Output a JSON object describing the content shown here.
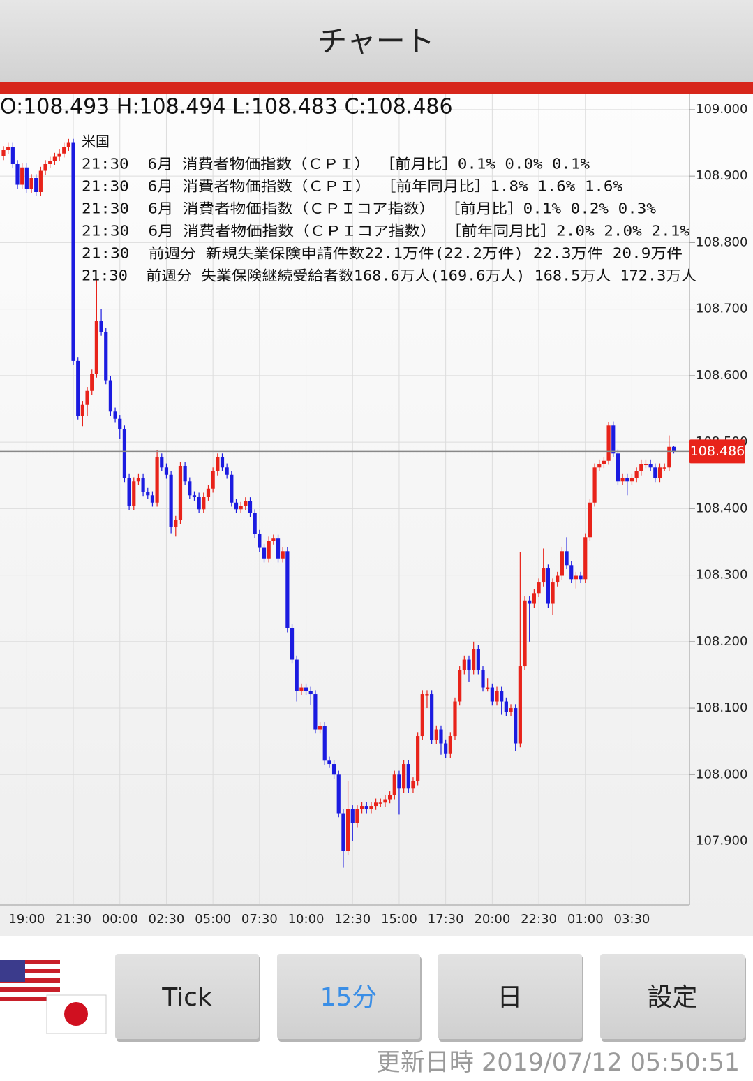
{
  "header": {
    "title": "チャート"
  },
  "chart_data": {
    "type": "candlestick",
    "ohlc_label": "O:108.493 H:108.494 L:108.483 C:108.486",
    "annotations": {
      "country": "米国",
      "lines": [
        "21:30  6月 消費者物価指数（ＣＰＩ） ［前月比］0.1% 0.0% 0.1%",
        "21:30  6月 消費者物価指数（ＣＰＩ） ［前年同月比］1.8% 1.6% 1.6%",
        "21:30  6月 消費者物価指数（ＣＰＩコア指数） ［前月比］0.1% 0.2% 0.3%",
        "21:30  6月 消費者物価指数（ＣＰＩコア指数） ［前年同月比］2.0% 2.0% 2.1%",
        "21:30  前週分 新規失業保険申請件数22.1万件(22.2万件) 22.3万件 20.9万件",
        "21:30  前週分 失業保険継続受給者数168.6万人(169.6万人) 168.5万人 172.3万人"
      ]
    },
    "categories": [
      null,
      null,
      null,
      null,
      null,
      "19:00",
      null,
      null,
      null,
      null,
      null,
      null,
      null,
      null,
      null,
      "21:30",
      null,
      null,
      null,
      null,
      null,
      null,
      null,
      null,
      null,
      "00:00",
      null,
      null,
      null,
      null,
      null,
      null,
      null,
      null,
      null,
      "02:30",
      null,
      null,
      null,
      null,
      null,
      null,
      null,
      null,
      null,
      "05:00",
      null,
      null,
      null,
      null,
      null,
      null,
      null,
      null,
      null,
      "07:30",
      null,
      null,
      null,
      null,
      null,
      null,
      null,
      null,
      null,
      "10:00",
      null,
      null,
      null,
      null,
      null,
      null,
      null,
      null,
      null,
      "12:30",
      null,
      null,
      null,
      null,
      null,
      null,
      null,
      null,
      null,
      "15:00",
      null,
      null,
      null,
      null,
      null,
      null,
      null,
      null,
      null,
      "17:30",
      null,
      null,
      null,
      null,
      null,
      null,
      null,
      null,
      null,
      "20:00",
      null,
      null,
      null,
      null,
      null,
      null,
      null,
      null,
      null,
      "22:30",
      null,
      null,
      null,
      null,
      null,
      null,
      null,
      null,
      null,
      "01:00",
      null,
      null,
      null,
      null,
      null,
      null,
      null,
      null,
      null,
      "03:30",
      null,
      null,
      null,
      null,
      null,
      null,
      null,
      null,
      null
    ],
    "open": [
      108.93,
      108.939,
      108.944,
      108.918,
      108.887,
      108.913,
      108.881,
      108.897,
      108.876,
      108.908,
      108.918,
      108.923,
      108.929,
      108.934,
      108.944,
      108.95,
      108.622,
      108.54,
      108.556,
      108.577,
      108.603,
      108.682,
      108.666,
      108.593,
      108.546,
      108.535,
      108.519,
      108.446,
      108.404,
      108.441,
      108.446,
      108.425,
      108.42,
      108.409,
      108.477,
      108.462,
      108.451,
      108.373,
      108.383,
      108.464,
      108.441,
      108.42,
      108.418,
      108.399,
      108.418,
      108.43,
      108.456,
      108.477,
      108.462,
      108.451,
      108.409,
      108.399,
      108.404,
      108.411,
      108.393,
      108.362,
      108.341,
      108.325,
      108.352,
      108.355,
      108.325,
      108.336,
      108.22,
      108.173,
      108.126,
      108.131,
      108.126,
      108.121,
      108.068,
      108.073,
      108.021,
      108.016,
      108.0,
      107.942,
      107.885,
      107.948,
      107.927,
      107.948,
      107.953,
      107.948,
      107.953,
      107.958,
      107.958,
      107.963,
      107.969,
      108.0,
      107.979,
      108.016,
      107.979,
      107.99,
      108.058,
      108.121,
      108.121,
      108.052,
      108.068,
      108.047,
      108.031,
      108.058,
      108.11,
      108.157,
      108.173,
      108.157,
      108.189,
      108.157,
      108.131,
      108.131,
      108.11,
      108.126,
      108.11,
      108.094,
      108.1,
      108.047,
      108.163,
      108.262,
      108.257,
      108.273,
      108.289,
      108.31,
      108.257,
      108.289,
      108.299,
      108.336,
      108.315,
      108.294,
      108.299,
      108.294,
      108.357,
      108.409,
      108.462,
      108.467,
      108.472,
      108.525,
      108.483,
      108.441,
      108.446,
      108.441,
      108.446,
      108.456,
      108.467,
      108.467,
      108.462,
      108.446,
      108.462,
      108.462,
      108.493
    ],
    "high": [
      108.945,
      108.95,
      108.95,
      108.924,
      108.919,
      108.919,
      108.903,
      108.903,
      108.914,
      108.924,
      108.929,
      108.935,
      108.94,
      108.95,
      108.956,
      108.956,
      108.628,
      108.562,
      108.583,
      108.609,
      108.745,
      108.7,
      108.672,
      108.599,
      108.552,
      108.541,
      108.525,
      108.452,
      108.447,
      108.452,
      108.452,
      108.431,
      108.426,
      108.488,
      108.483,
      108.468,
      108.457,
      108.389,
      108.47,
      108.47,
      108.447,
      108.426,
      108.424,
      108.424,
      108.436,
      108.462,
      108.483,
      108.483,
      108.468,
      108.457,
      108.415,
      108.41,
      108.417,
      108.417,
      108.399,
      108.368,
      108.347,
      108.358,
      108.361,
      108.361,
      108.342,
      108.342,
      108.226,
      108.179,
      108.137,
      108.137,
      108.132,
      108.127,
      108.079,
      108.079,
      108.027,
      108.022,
      108.006,
      107.948,
      107.99,
      107.954,
      107.954,
      107.959,
      107.959,
      107.959,
      107.964,
      107.964,
      107.969,
      107.975,
      108.006,
      108.006,
      108.022,
      108.022,
      107.996,
      108.064,
      108.127,
      108.127,
      108.127,
      108.074,
      108.074,
      108.053,
      108.064,
      108.116,
      108.163,
      108.179,
      108.179,
      108.2,
      108.195,
      108.163,
      108.145,
      108.137,
      108.132,
      108.132,
      108.116,
      108.106,
      108.106,
      108.335,
      108.268,
      108.268,
      108.279,
      108.295,
      108.34,
      108.316,
      108.295,
      108.305,
      108.342,
      108.357,
      108.321,
      108.305,
      108.305,
      108.363,
      108.415,
      108.468,
      108.473,
      108.478,
      108.53,
      108.531,
      108.489,
      108.452,
      108.452,
      108.452,
      108.462,
      108.473,
      108.473,
      108.473,
      108.468,
      108.468,
      108.468,
      108.51,
      108.494
    ],
    "low": [
      108.924,
      108.933,
      108.912,
      108.881,
      108.881,
      108.875,
      108.875,
      108.87,
      108.87,
      108.902,
      108.912,
      108.917,
      108.923,
      108.928,
      108.938,
      108.616,
      108.534,
      108.524,
      108.54,
      108.571,
      108.597,
      108.66,
      108.587,
      108.54,
      108.529,
      108.505,
      108.44,
      108.398,
      108.398,
      108.435,
      108.419,
      108.414,
      108.403,
      108.403,
      108.456,
      108.445,
      108.363,
      108.358,
      108.377,
      108.435,
      108.414,
      108.412,
      108.393,
      108.393,
      108.412,
      108.424,
      108.45,
      108.456,
      108.445,
      108.403,
      108.393,
      108.393,
      108.398,
      108.387,
      108.356,
      108.335,
      108.319,
      108.319,
      108.346,
      108.319,
      108.319,
      108.214,
      108.167,
      108.11,
      108.12,
      108.12,
      108.105,
      108.062,
      108.062,
      108.015,
      108.01,
      107.994,
      107.936,
      107.86,
      107.879,
      107.9,
      107.921,
      107.942,
      107.942,
      107.942,
      107.947,
      107.952,
      107.952,
      107.957,
      107.963,
      107.94,
      107.973,
      107.973,
      107.973,
      107.984,
      108.052,
      108.1,
      108.046,
      108.046,
      108.03,
      108.025,
      108.025,
      108.052,
      108.104,
      108.151,
      108.14,
      108.151,
      108.151,
      108.125,
      108.125,
      108.104,
      108.104,
      108.09,
      108.088,
      108.088,
      108.035,
      108.041,
      108.157,
      108.2,
      108.251,
      108.267,
      108.283,
      108.251,
      108.24,
      108.283,
      108.293,
      108.309,
      108.288,
      108.28,
      108.288,
      108.288,
      108.351,
      108.403,
      108.456,
      108.461,
      108.466,
      108.477,
      108.435,
      108.435,
      108.42,
      108.435,
      108.44,
      108.45,
      108.461,
      108.456,
      108.44,
      108.44,
      108.456,
      108.456,
      108.483
    ],
    "close": [
      108.939,
      108.944,
      108.918,
      108.887,
      108.913,
      108.881,
      108.897,
      108.876,
      108.908,
      108.918,
      108.923,
      108.929,
      108.934,
      108.944,
      108.95,
      108.622,
      108.54,
      108.556,
      108.577,
      108.603,
      108.682,
      108.666,
      108.593,
      108.546,
      108.535,
      108.519,
      108.446,
      108.404,
      108.441,
      108.446,
      108.425,
      108.42,
      108.409,
      108.477,
      108.462,
      108.451,
      108.373,
      108.383,
      108.464,
      108.441,
      108.42,
      108.418,
      108.399,
      108.418,
      108.43,
      108.456,
      108.477,
      108.462,
      108.451,
      108.409,
      108.399,
      108.404,
      108.411,
      108.393,
      108.362,
      108.341,
      108.325,
      108.352,
      108.355,
      108.325,
      108.336,
      108.22,
      108.173,
      108.126,
      108.131,
      108.126,
      108.121,
      108.068,
      108.073,
      108.021,
      108.016,
      108.0,
      107.942,
      107.885,
      107.948,
      107.927,
      107.948,
      107.953,
      107.948,
      107.953,
      107.958,
      107.958,
      107.963,
      107.969,
      108.0,
      107.979,
      108.016,
      107.979,
      107.99,
      108.058,
      108.121,
      108.121,
      108.052,
      108.068,
      108.047,
      108.031,
      108.058,
      108.11,
      108.157,
      108.173,
      108.157,
      108.189,
      108.157,
      108.131,
      108.131,
      108.11,
      108.126,
      108.11,
      108.094,
      108.1,
      108.047,
      108.163,
      108.262,
      108.257,
      108.273,
      108.289,
      108.31,
      108.257,
      108.289,
      108.299,
      108.336,
      108.315,
      108.294,
      108.299,
      108.294,
      108.357,
      108.409,
      108.462,
      108.467,
      108.472,
      108.525,
      108.483,
      108.441,
      108.446,
      108.441,
      108.446,
      108.456,
      108.467,
      108.467,
      108.462,
      108.446,
      108.462,
      108.462,
      108.493,
      108.486
    ],
    "up_color": "#e8231a",
    "down_color": "#1b1be0",
    "ylim": [
      107.805,
      109.023
    ],
    "yticks": [
      {
        "value": 107.9,
        "label": "107.900"
      },
      {
        "value": 108,
        "label": "108.000"
      },
      {
        "value": 108.1,
        "label": "108.100"
      },
      {
        "value": 108.2,
        "label": "108.200"
      },
      {
        "value": 108.3,
        "label": "108.300"
      },
      {
        "value": 108.4,
        "label": "108.400"
      },
      {
        "value": 108.5,
        "label": "108.500"
      },
      {
        "value": 108.6,
        "label": "108.600"
      },
      {
        "value": 108.7,
        "label": "108.700"
      },
      {
        "value": 108.8,
        "label": "108.800"
      },
      {
        "value": 108.9,
        "label": "108.900"
      },
      {
        "value": 109,
        "label": "109.000"
      }
    ],
    "grid": true,
    "last_price": {
      "value": 108.486,
      "label": "108.486"
    }
  },
  "buttons": [
    "Tick",
    "15分",
    "日",
    "設定"
  ],
  "footer": {
    "update_time": "更新日時 2019/07/12 05:50:51"
  }
}
